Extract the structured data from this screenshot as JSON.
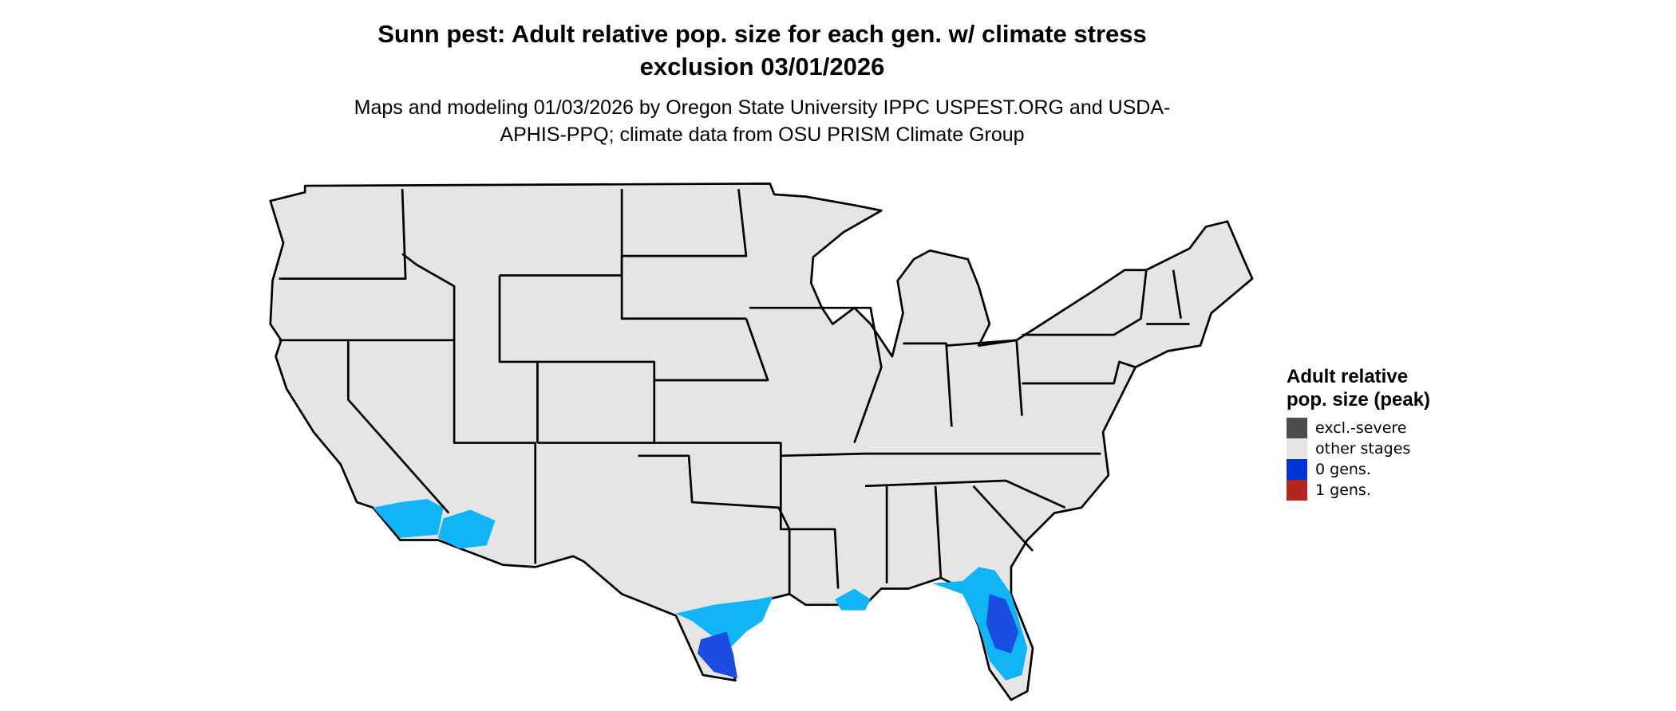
{
  "title": "Sunn pest: Adult relative pop. size for each gen. w/ climate stress exclusion 03/01/2026",
  "subtitle": "Maps and modeling 01/03/2026 by Oregon State University IPPC USPEST.ORG and USDA-APHIS-PPQ; climate data from OSU PRISM Climate Group",
  "legend": {
    "title": "Adult relative pop. size (peak)",
    "items": [
      {
        "label": "excl.-severe",
        "color": "#4d4d4d"
      },
      {
        "label": "other stages",
        "color": "#e5e5e5"
      },
      {
        "label": "0 gens.",
        "color": "#0033d6"
      },
      {
        "label": "1 gens.",
        "color": "#b3261e"
      }
    ]
  }
}
